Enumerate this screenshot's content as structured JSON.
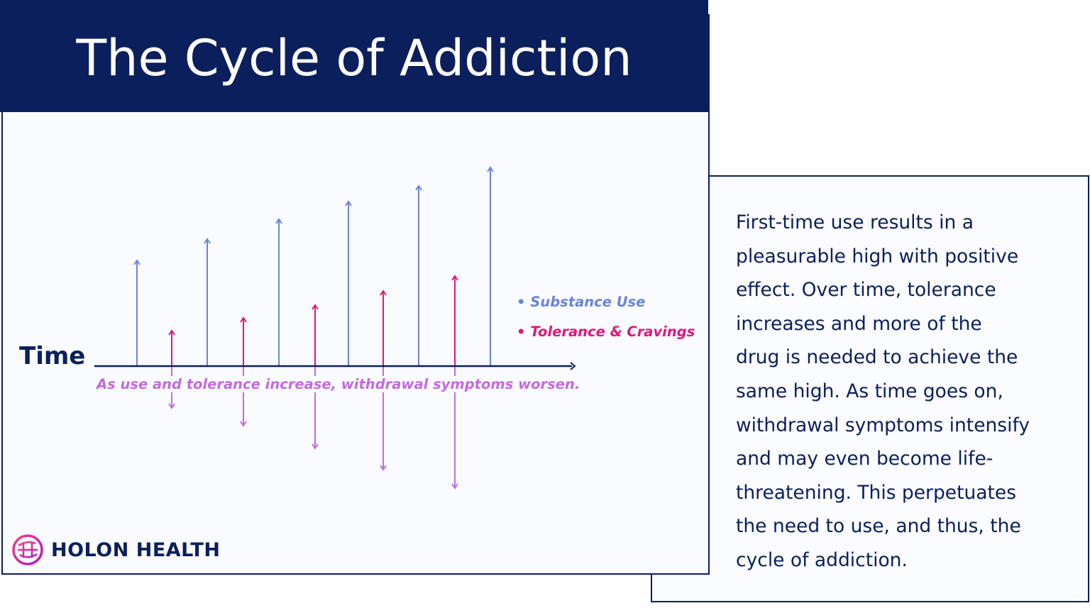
{
  "slide": {
    "title": "The Cycle of Addiction",
    "axis_label": "Time",
    "caption": "As use and tolerance increase, withdrawal symptoms worsen.",
    "legend": [
      {
        "label": "Substance Use",
        "color": "#6b84d8"
      },
      {
        "label": "Tolerance & Cravings",
        "color": "#e0177a"
      }
    ],
    "withdrawal_color": "#c46ae0",
    "brand": {
      "name": "HOLON HEALTH",
      "logo_icon": "holon-health-logo-icon"
    }
  },
  "description": {
    "lines": [
      "First-time use results in a",
      "pleasurable high with positive",
      "effect. Over time, tolerance",
      "increases and more of the",
      "drug is needed to achieve the",
      "same high. As time goes on,",
      "withdrawal symptoms intensify",
      "and may even become life-",
      "threatening. This perpetuates",
      "the need to use, and thus, the",
      "cycle of addiction."
    ]
  },
  "colors": {
    "navy": "#0b1f5c",
    "blue": "#6b84d8",
    "pink": "#e0177a",
    "violet": "#c46ae0"
  }
}
